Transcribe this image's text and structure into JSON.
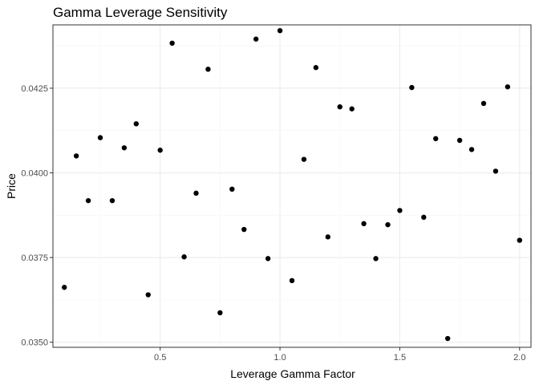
{
  "chart_data": {
    "type": "scatter",
    "title": "Gamma Leverage Sensitivity",
    "xlabel": "Leverage Gamma Factor",
    "ylabel": "Price",
    "xlim": [
      0.0525,
      2.0475
    ],
    "ylim": [
      0.03485,
      0.04437
    ],
    "x_ticks": [
      0.5,
      1.0,
      1.5,
      2.0
    ],
    "x_tick_labels": [
      "0.5",
      "1.0",
      "1.5",
      "2.0"
    ],
    "x_minor_ticks": [
      0.25,
      0.75,
      1.25,
      1.75
    ],
    "y_ticks": [
      0.035,
      0.0375,
      0.04,
      0.0425
    ],
    "y_tick_labels": [
      "0.0350",
      "0.0375",
      "0.0400",
      "0.0425"
    ],
    "y_minor_ticks": [
      0.03625,
      0.03875,
      0.04125,
      0.04375
    ],
    "grid": true,
    "theme": "bw",
    "points": [
      {
        "x": 0.1,
        "y": 0.03662
      },
      {
        "x": 0.15,
        "y": 0.0405
      },
      {
        "x": 0.2,
        "y": 0.03918
      },
      {
        "x": 0.25,
        "y": 0.04104
      },
      {
        "x": 0.3,
        "y": 0.03918
      },
      {
        "x": 0.35,
        "y": 0.04074
      },
      {
        "x": 0.4,
        "y": 0.04145
      },
      {
        "x": 0.45,
        "y": 0.0364
      },
      {
        "x": 0.5,
        "y": 0.04067
      },
      {
        "x": 0.55,
        "y": 0.04383
      },
      {
        "x": 0.6,
        "y": 0.03752
      },
      {
        "x": 0.65,
        "y": 0.0394
      },
      {
        "x": 0.7,
        "y": 0.04306
      },
      {
        "x": 0.75,
        "y": 0.03587
      },
      {
        "x": 0.8,
        "y": 0.03952
      },
      {
        "x": 0.85,
        "y": 0.03833
      },
      {
        "x": 0.9,
        "y": 0.04395
      },
      {
        "x": 0.95,
        "y": 0.03747
      },
      {
        "x": 1.0,
        "y": 0.0442
      },
      {
        "x": 1.05,
        "y": 0.03682
      },
      {
        "x": 1.1,
        "y": 0.0404
      },
      {
        "x": 1.15,
        "y": 0.04311
      },
      {
        "x": 1.2,
        "y": 0.03811
      },
      {
        "x": 1.25,
        "y": 0.04195
      },
      {
        "x": 1.3,
        "y": 0.04189
      },
      {
        "x": 1.35,
        "y": 0.0385
      },
      {
        "x": 1.4,
        "y": 0.03747
      },
      {
        "x": 1.45,
        "y": 0.03847
      },
      {
        "x": 1.5,
        "y": 0.03889
      },
      {
        "x": 1.55,
        "y": 0.04252
      },
      {
        "x": 1.6,
        "y": 0.03869
      },
      {
        "x": 1.65,
        "y": 0.04101
      },
      {
        "x": 1.7,
        "y": 0.03511
      },
      {
        "x": 1.75,
        "y": 0.04096
      },
      {
        "x": 1.8,
        "y": 0.04069
      },
      {
        "x": 1.85,
        "y": 0.04205
      },
      {
        "x": 1.9,
        "y": 0.04005
      },
      {
        "x": 1.95,
        "y": 0.04254
      },
      {
        "x": 2.0,
        "y": 0.03801
      }
    ]
  },
  "colors": {
    "point": "#000000",
    "panel_border": "#333333",
    "grid_major": "#ebebeb",
    "grid_minor": "#f5f5f5",
    "tick": "#333333"
  }
}
